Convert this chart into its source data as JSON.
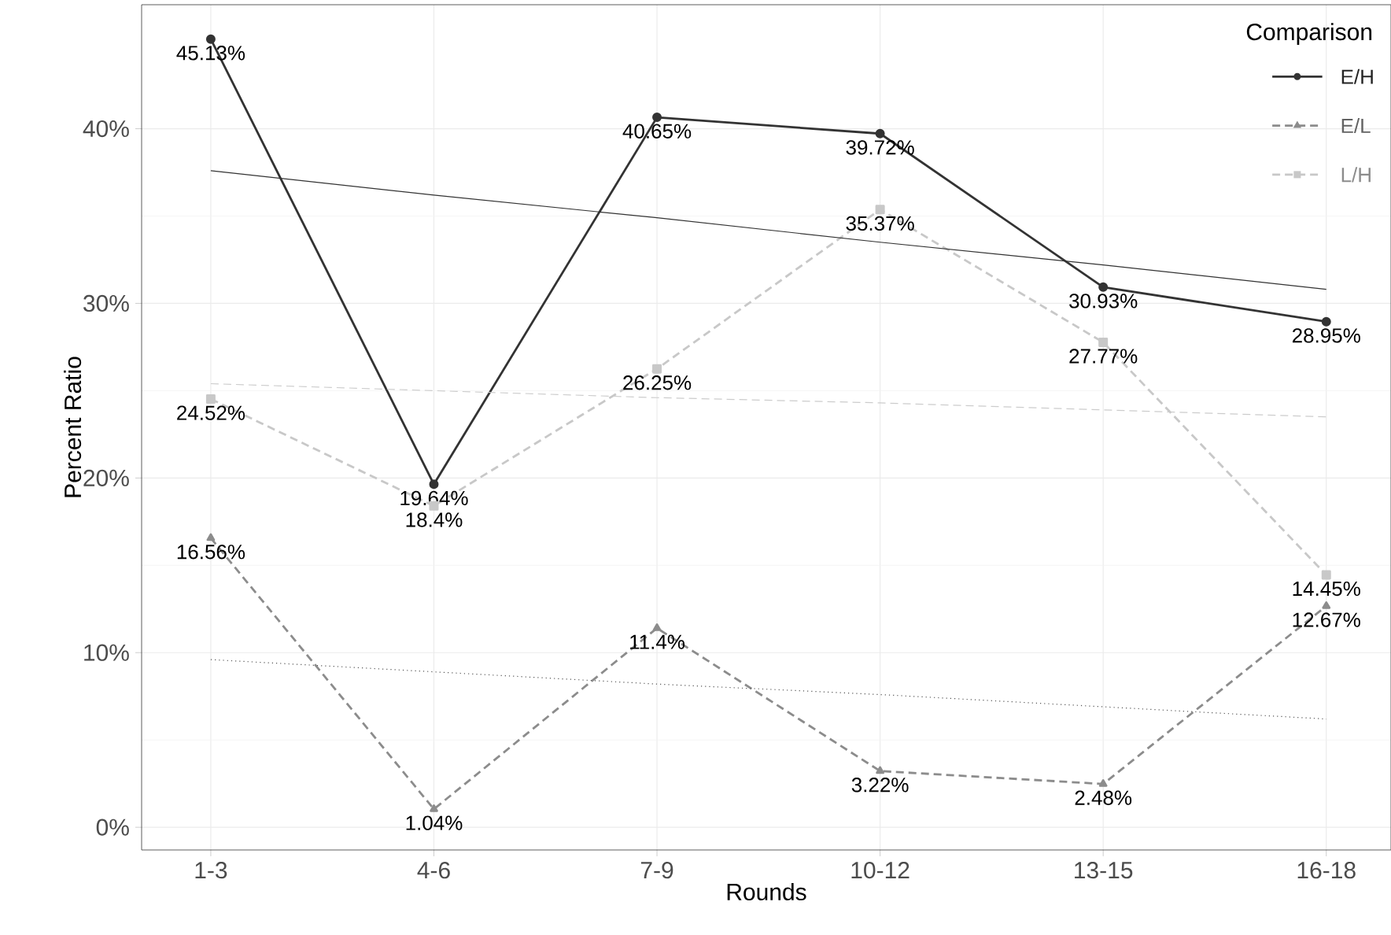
{
  "chart_data": {
    "type": "line",
    "xlabel": "Rounds",
    "ylabel": "Percent Ratio",
    "legend_title": "Comparison",
    "legend": "top right",
    "grid": true,
    "categories": [
      "1-3",
      "4-6",
      "7-9",
      "10-12",
      "13-15",
      "16-18"
    ],
    "ylim": [
      -1.3,
      47.1
    ],
    "yticks": [
      {
        "value": 0,
        "label": "0%"
      },
      {
        "value": 10,
        "label": "10%"
      },
      {
        "value": 20,
        "label": "20%"
      },
      {
        "value": 30,
        "label": "30%"
      },
      {
        "value": 40,
        "label": "40%"
      }
    ],
    "series": [
      {
        "name": "E/H",
        "color": "#333333",
        "marker": "circle",
        "line_style": "solid",
        "values": [
          45.13,
          19.64,
          40.65,
          39.72,
          30.93,
          28.95
        ],
        "value_labels": [
          "45.13%",
          "19.64%",
          "40.65%",
          "39.72%",
          "30.93%",
          "28.95%"
        ]
      },
      {
        "name": "E/L",
        "color": "#8c8c8c",
        "marker": "triangle",
        "line_style": "dashed",
        "values": [
          16.56,
          1.04,
          11.4,
          3.22,
          2.48,
          12.67
        ],
        "value_labels": [
          "16.56%",
          "1.04%",
          "11.4%",
          "3.22%",
          "2.48%",
          "12.67%"
        ]
      },
      {
        "name": "L/H",
        "color": "#c8c8c8",
        "marker": "square",
        "line_style": "dashed",
        "values": [
          24.52,
          18.4,
          26.25,
          35.37,
          27.77,
          14.45
        ],
        "value_labels": [
          "24.52%",
          "18.4%",
          "26.25%",
          "35.37%",
          "27.77%",
          "14.45%"
        ]
      },
      {
        "type": "line",
        "color": "#333333",
        "marker": "none",
        "line_style": "solid",
        "values": [
          37.6,
          36.2,
          34.9,
          33.5,
          32.2,
          30.8
        ]
      },
      {
        "type": "line",
        "color": "#555555",
        "marker": "none",
        "line_style": "dotted",
        "values": [
          9.6,
          8.9,
          8.2,
          7.6,
          6.9,
          6.2
        ]
      },
      {
        "type": "line",
        "color": "#cccccc",
        "marker": "none",
        "line_style": "dashed",
        "values": [
          25.4,
          25.0,
          24.6,
          24.3,
          23.9,
          23.5
        ]
      }
    ]
  }
}
